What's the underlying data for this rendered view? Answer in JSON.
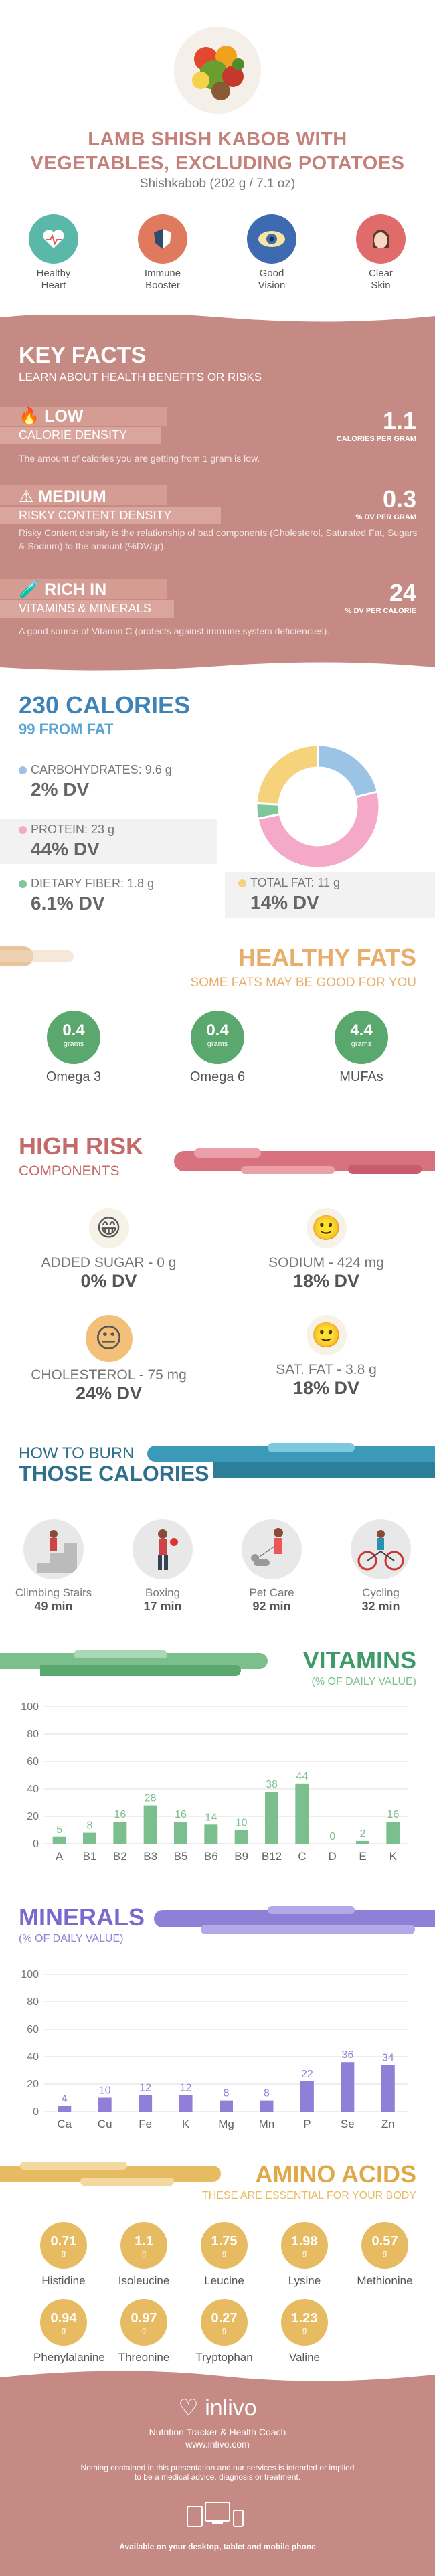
{
  "header": {
    "title_line1": "LAMB SHISH KABOB WITH",
    "title_line2": "VEGETABLES, EXCLUDING POTATOES",
    "subtitle": "Shishkabob (202 g / 7.1 oz)",
    "benefits": [
      {
        "label1": "Healthy",
        "label2": "Heart",
        "icon": "heart-icon",
        "color": "#59b8a8"
      },
      {
        "label1": "Immune",
        "label2": "Booster",
        "icon": "shield-icon",
        "color": "#e07a5f"
      },
      {
        "label1": "Good",
        "label2": "Vision",
        "icon": "eye-icon",
        "color": "#3d6ab0"
      },
      {
        "label1": "Clear",
        "label2": "Skin",
        "icon": "face-icon",
        "color": "#e06b6b"
      }
    ]
  },
  "key_facts": {
    "title": "KEY FACTS",
    "subtitle": "LEARN ABOUT HEALTH BENEFITS OR RISKS",
    "items": [
      {
        "level": "LOW",
        "name": "CALORIE DENSITY",
        "value": "1.1",
        "unit": "CALORIES PER GRAM",
        "desc": "The amount of calories you are getting from 1 gram is low."
      },
      {
        "level": "MEDIUM",
        "name": "RISKY CONTENT DENSITY",
        "value": "0.3",
        "unit": "% DV PER GRAM",
        "desc": "Risky Content density is the relationship of bad components (Cholesterol, Saturated Fat, Sugars & Sodium) to the amount (%DV/gr)."
      },
      {
        "level": "RICH IN",
        "name": "VITAMINS & MINERALS",
        "value": "24",
        "unit": "% DV PER CALORIE",
        "desc": "A good source of Vitamin C (protects against immune system deficiencies)."
      }
    ]
  },
  "calories": {
    "total": "230 CALORIES",
    "from_fat": "99 FROM FAT",
    "items": [
      {
        "label": "CARBOHYDRATES: 9.6 g",
        "dv": "2% DV",
        "color": "#9bc3e6"
      },
      {
        "label": "PROTEIN: 23 g",
        "dv": "44% DV",
        "color": "#f4a9c8"
      },
      {
        "label": "DIETARY FIBER: 1.8 g",
        "dv": "6.1% DV",
        "color": "#7dc79a"
      },
      {
        "label": "TOTAL FAT: 11 g",
        "dv": "14% DV",
        "color": "#f6d27a"
      }
    ],
    "donut": [
      {
        "name": "carbs",
        "value": 9.6,
        "color": "#9bc3e6"
      },
      {
        "name": "protein",
        "value": 23,
        "color": "#f4a9c8"
      },
      {
        "name": "fiber",
        "value": 1.8,
        "color": "#7dc79a"
      },
      {
        "name": "fat",
        "value": 11,
        "color": "#f6d27a"
      }
    ]
  },
  "fats": {
    "title": "HEALTHY FATS",
    "subtitle": "SOME FATS MAY BE GOOD FOR YOU",
    "items": [
      {
        "value": "0.4",
        "unit": "grams",
        "name": "Omega 3"
      },
      {
        "value": "0.4",
        "unit": "grams",
        "name": "Omega 6"
      },
      {
        "value": "4.4",
        "unit": "grams",
        "name": "MUFAs"
      }
    ]
  },
  "risk": {
    "title": "HIGH RISK",
    "subtitle": "COMPONENTS",
    "items": [
      {
        "label": "ADDED SUGAR - 0 g",
        "dv": "0% DV",
        "face": "😁",
        "bg": "#f6f2e8"
      },
      {
        "label": "SODIUM - 424 mg",
        "dv": "18% DV",
        "face": "🙂",
        "bg": "#f6f2e8"
      },
      {
        "label": "CHOLESTEROL - 75 mg",
        "dv": "24% DV",
        "face": "😐",
        "bg": "#f3c07a"
      },
      {
        "label": "SAT. FAT - 3.8 g",
        "dv": "18% DV",
        "face": "🙂",
        "bg": "#f6f2e8"
      }
    ]
  },
  "burn": {
    "title1": "HOW TO BURN",
    "title2": "THOSE CALORIES",
    "items": [
      {
        "name": "Climbing Stairs",
        "time": "49 min"
      },
      {
        "name": "Boxing",
        "time": "17 min"
      },
      {
        "name": "Pet Care",
        "time": "92 min"
      },
      {
        "name": "Cycling",
        "time": "32 min"
      }
    ]
  },
  "vitamins": {
    "title": "VITAMINS",
    "subtitle": "(% OF DAILY VALUE)",
    "color": "#7cbf8e",
    "chart_data": {
      "type": "bar",
      "categories": [
        "A",
        "B1",
        "B2",
        "B3",
        "B5",
        "B6",
        "B9",
        "B12",
        "C",
        "D",
        "E",
        "K"
      ],
      "values": [
        5,
        8,
        16,
        28,
        16,
        14,
        10,
        38,
        44,
        0,
        2,
        16
      ],
      "ylim": [
        0,
        100
      ],
      "yticks": [
        0,
        20,
        40,
        60,
        80,
        100
      ]
    }
  },
  "minerals": {
    "title": "MINERALS",
    "subtitle": "(% OF DAILY VALUE)",
    "color": "#8f7fd6",
    "chart_data": {
      "type": "bar",
      "categories": [
        "Ca",
        "Cu",
        "Fe",
        "K",
        "Mg",
        "Mn",
        "P",
        "Se",
        "Zn"
      ],
      "values": [
        4,
        10,
        12,
        12,
        8,
        8,
        22,
        36,
        34
      ],
      "ylim": [
        0,
        100
      ],
      "yticks": [
        0,
        20,
        40,
        60,
        80,
        100
      ]
    }
  },
  "amino": {
    "title": "AMINO ACIDS",
    "subtitle": "THESE ARE ESSENTIAL FOR YOUR BODY",
    "unit": "g",
    "items": [
      {
        "value": "0.71",
        "name": "Histidine"
      },
      {
        "value": "1.1",
        "name": "Isoleucine"
      },
      {
        "value": "1.75",
        "name": "Leucine"
      },
      {
        "value": "1.98",
        "name": "Lysine"
      },
      {
        "value": "0.57",
        "name": "Methionine"
      },
      {
        "value": "0.94",
        "name": "Phenylalanine"
      },
      {
        "value": "0.97",
        "name": "Threonine"
      },
      {
        "value": "0.27",
        "name": "Tryptophan"
      },
      {
        "value": "1.23",
        "name": "Valine"
      }
    ]
  },
  "footer": {
    "brand": "inlivo",
    "tagline": "Nutrition Tracker & Health Coach",
    "url": "www.inlivo.com",
    "disclaimer1": "Nothing contained in this presentation and our services is intended or implied",
    "disclaimer2": "to be a medical advice, diagnosis or treatment.",
    "available": "Available on your desktop, tablet and mobile phone"
  }
}
